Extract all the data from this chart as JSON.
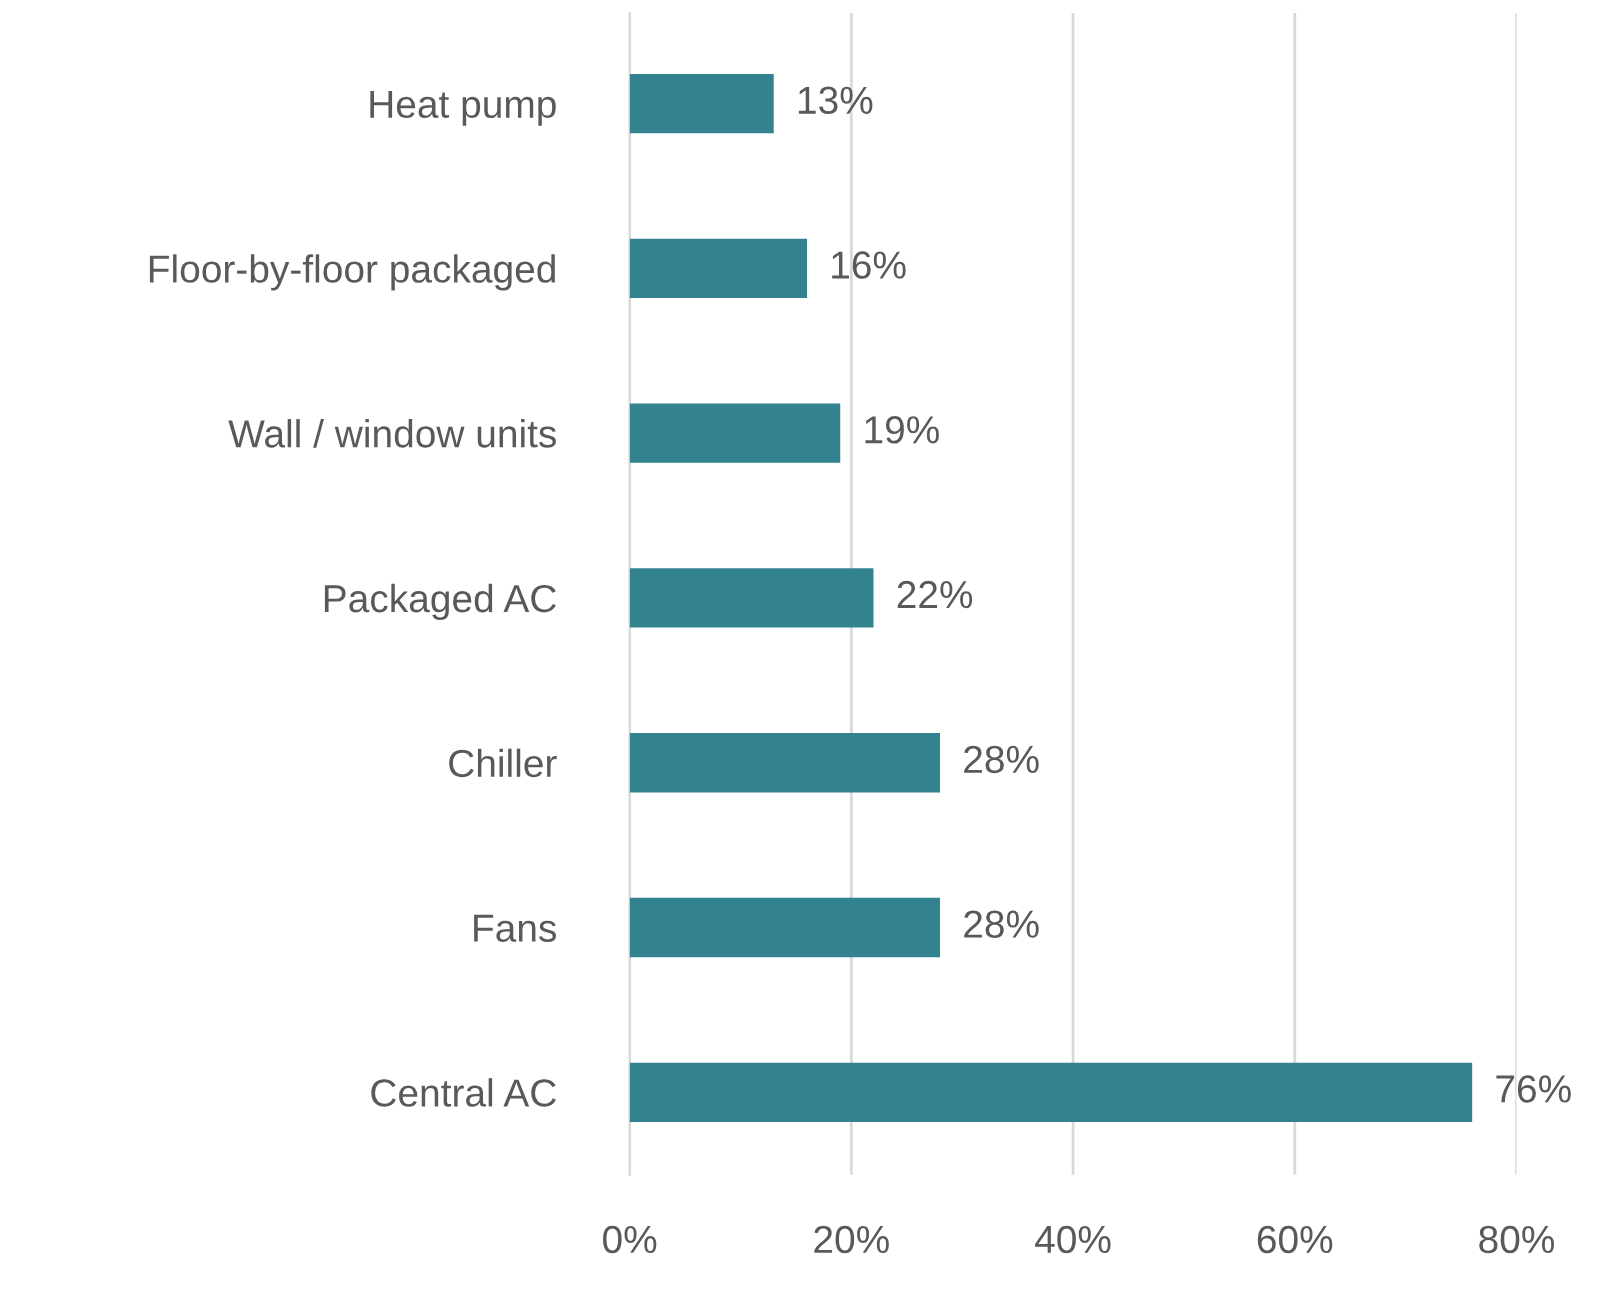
{
  "chart_data": {
    "type": "bar",
    "orientation": "horizontal",
    "categories": [
      "Heat pump",
      "Floor-by-floor packaged",
      "Wall / window units",
      "Packaged AC",
      "Chiller",
      "Fans",
      "Central AC"
    ],
    "values": [
      13,
      16,
      19,
      22,
      28,
      28,
      76
    ],
    "value_labels": [
      "13%",
      "16%",
      "19%",
      "22%",
      "28%",
      "28%",
      "76%"
    ],
    "color": "#338290",
    "xlim": [
      0,
      80
    ],
    "xticks": [
      {
        "value": 0,
        "label": "0%"
      },
      {
        "value": 20,
        "label": "20%"
      },
      {
        "value": 40,
        "label": "40%"
      },
      {
        "value": 60,
        "label": "60%"
      },
      {
        "value": 80,
        "label": "80%"
      }
    ],
    "grid": "x",
    "legend": false
  }
}
